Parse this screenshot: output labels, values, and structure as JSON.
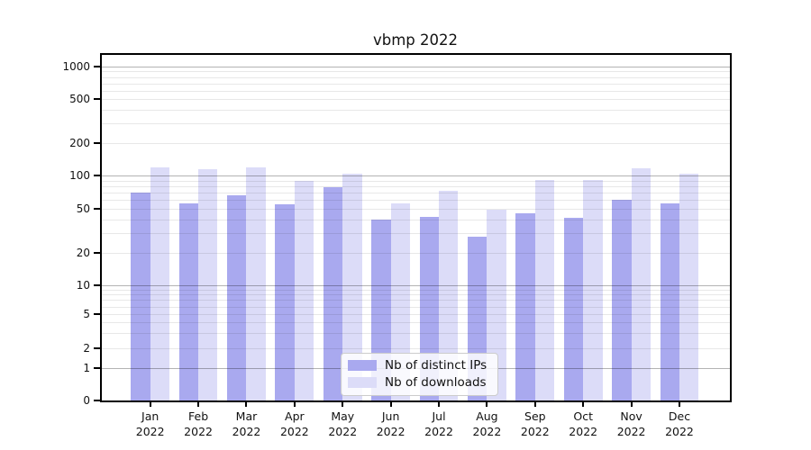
{
  "chart_data": {
    "type": "bar",
    "title": "vbmp 2022",
    "categories": [
      "Jan",
      "Feb",
      "Mar",
      "Apr",
      "May",
      "Jun",
      "Jul",
      "Aug",
      "Sep",
      "Oct",
      "Nov",
      "Dec"
    ],
    "x_year": "2022",
    "series": [
      {
        "name": "Nb of distinct IPs",
        "color": "#a9a9ef",
        "values": [
          70,
          56,
          66,
          55,
          79,
          40,
          42,
          28,
          45,
          41,
          60,
          56
        ]
      },
      {
        "name": "Nb of downloads",
        "color": "#dcdcf8",
        "values": [
          119,
          116,
          119,
          89,
          105,
          56,
          73,
          49,
          92,
          91,
          118,
          105
        ]
      }
    ],
    "yticks": [
      0,
      1,
      2,
      5,
      10,
      20,
      50,
      100,
      200,
      500,
      1000
    ],
    "yscale": "log above 1, compressed linear region 0-1",
    "ylim": [
      0,
      1280
    ],
    "grid": {
      "orientation": "horizontal",
      "major_values": [
        1,
        10,
        100,
        1000
      ],
      "minor_decades": [
        1,
        10,
        100
      ],
      "minor_multiples": [
        2,
        3,
        4,
        5,
        6,
        7,
        8,
        9
      ]
    },
    "legend_position": "lower center, inside plot"
  },
  "colors": {
    "background": "#ffffff",
    "grid_major": "#b3b3b3",
    "grid_minor": "#e8e8e8",
    "spine": "#000000",
    "text": "#111111",
    "legend_border": "#cccccc"
  }
}
